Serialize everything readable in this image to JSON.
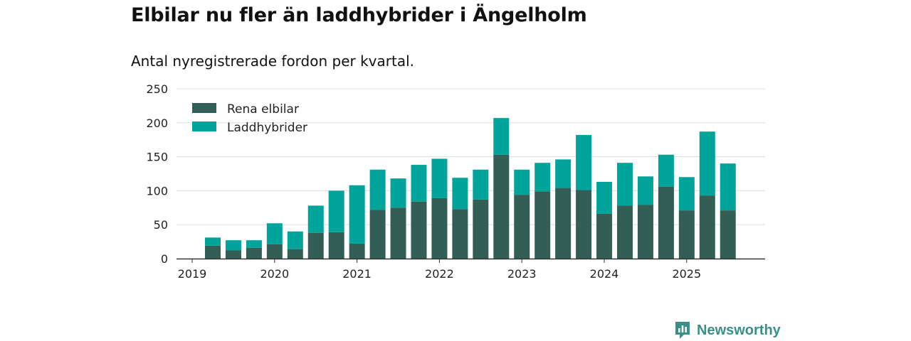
{
  "title": "Elbilar nu fler än laddhybrider i Ängelholm",
  "subtitle": "Antal nyregistrerade fordon per kvartal.",
  "brand": {
    "name": "Newsworthy",
    "icon": "newsworthy-logo-icon"
  },
  "colors": {
    "electric": "#335e55",
    "hybrid": "#00a49a",
    "grid": "#dddddd",
    "axis": "#333333",
    "text": "#222222"
  },
  "chart_data": {
    "type": "bar",
    "stacked": true,
    "title": "Elbilar nu fler än laddhybrider i Ängelholm",
    "xlabel": "",
    "ylabel": "",
    "ylim": [
      0,
      250
    ],
    "yticks": [
      0,
      50,
      100,
      150,
      200,
      250
    ],
    "grid": true,
    "legend_position": "top-left",
    "categories": [
      "2019Q2",
      "2019Q3",
      "2019Q4",
      "2020Q1",
      "2020Q2",
      "2020Q3",
      "2020Q4",
      "2021Q1",
      "2021Q2",
      "2021Q3",
      "2021Q4",
      "2022Q1",
      "2022Q2",
      "2022Q3",
      "2022Q4",
      "2023Q1",
      "2023Q2",
      "2023Q3",
      "2023Q4",
      "2024Q1",
      "2024Q2",
      "2024Q3",
      "2024Q4",
      "2025Q1",
      "2025Q2",
      "2025Q3"
    ],
    "x_tick_labels": [
      "2019",
      "2020",
      "2021",
      "2022",
      "2023",
      "2024",
      "2025"
    ],
    "series": [
      {
        "name": "Rena elbilar",
        "values": [
          19,
          12,
          16,
          21,
          14,
          38,
          39,
          22,
          72,
          75,
          84,
          89,
          73,
          87,
          153,
          94,
          99,
          104,
          101,
          66,
          78,
          79,
          106,
          71,
          93,
          71
        ]
      },
      {
        "name": "Laddhybrider",
        "values": [
          12,
          15,
          11,
          31,
          26,
          40,
          61,
          86,
          59,
          43,
          54,
          58,
          46,
          44,
          54,
          37,
          42,
          42,
          81,
          47,
          63,
          42,
          47,
          49,
          94,
          69
        ]
      }
    ]
  }
}
